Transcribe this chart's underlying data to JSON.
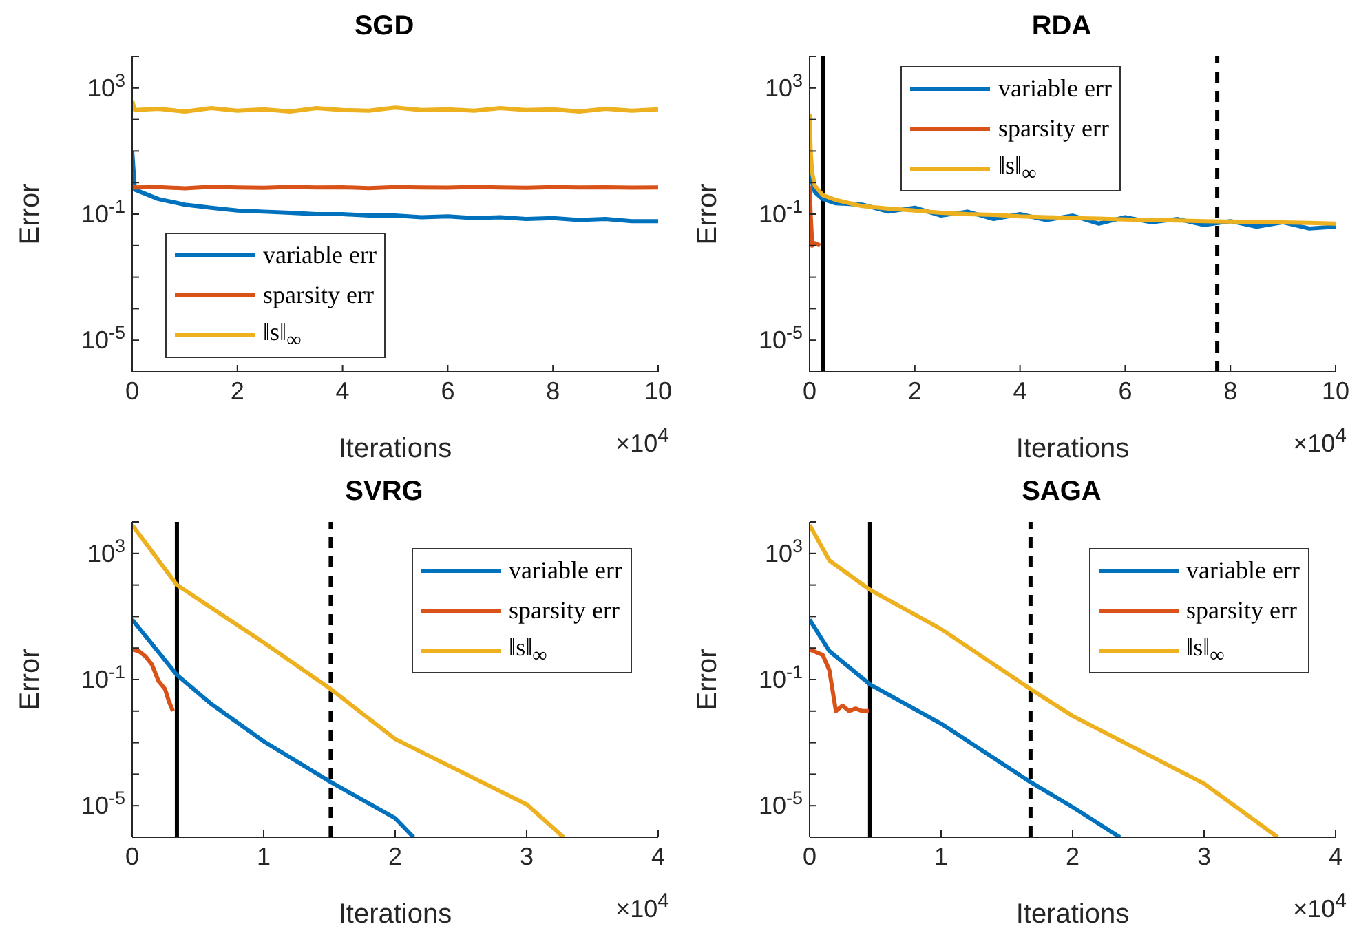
{
  "chart_data": [
    {
      "type": "line",
      "title": "SGD",
      "xlabel": "Iterations",
      "ylabel": "Error",
      "log": "y",
      "legend": "bottom left",
      "line_style": "solid",
      "xlim": [
        0,
        10
      ],
      "xticks": [
        0,
        2,
        4,
        6,
        8,
        10
      ],
      "ylim": [
        1e-06,
        10000
      ],
      "yticks": [
        {
          "value": 1e-06,
          "label": null
        },
        {
          "value": 1e-05,
          "label": "10$^{-5}$"
        },
        {
          "value": 0.0001,
          "label": null
        },
        {
          "value": 0.001,
          "label": null
        },
        {
          "value": 0.01,
          "label": null
        },
        {
          "value": 0.1,
          "label": "10$^{-1}$"
        },
        {
          "value": 1,
          "label": null
        },
        {
          "value": 10,
          "label": null
        },
        {
          "value": 100,
          "label": null
        },
        {
          "value": 1000,
          "label": "10$^{3}$"
        },
        {
          "value": 10000,
          "label": null
        }
      ],
      "annotations": [
        "×10$^{4}$"
      ],
      "series": [
        {
          "name": "variable err",
          "color": "#0072bd",
          "x": [
            0,
            0.05,
            0.5,
            1,
            1.5,
            2,
            2.5,
            3,
            3.5,
            4,
            4.5,
            5,
            5.5,
            6,
            6.5,
            7,
            7.5,
            8,
            8.5,
            9,
            9.5,
            10
          ],
          "values": [
            10,
            0.6,
            0.3,
            0.2,
            0.16,
            0.13,
            0.12,
            0.11,
            0.1,
            0.1,
            0.09,
            0.09,
            0.08,
            0.085,
            0.075,
            0.08,
            0.07,
            0.075,
            0.065,
            0.07,
            0.06,
            0.06
          ]
        },
        {
          "name": "sparsity err",
          "color": "#d95319",
          "x": [
            0,
            0.05,
            0.5,
            1,
            1.5,
            2,
            2.5,
            3,
            3.5,
            4,
            4.5,
            5,
            5.5,
            6,
            6.5,
            7,
            7.5,
            8,
            8.5,
            9,
            9.5,
            10
          ],
          "values": [
            0.8,
            0.7,
            0.72,
            0.66,
            0.74,
            0.7,
            0.68,
            0.73,
            0.7,
            0.71,
            0.67,
            0.72,
            0.7,
            0.69,
            0.73,
            0.7,
            0.68,
            0.72,
            0.7,
            0.71,
            0.69,
            0.7
          ]
        },
        {
          "name": "‖s‖$_{∞}$",
          "color": "#edb120",
          "x": [
            0,
            0.05,
            0.5,
            1,
            1.5,
            2,
            2.5,
            3,
            3.5,
            4,
            4.5,
            5,
            5.5,
            6,
            6.5,
            7,
            7.5,
            8,
            8.5,
            9,
            9.5,
            10
          ],
          "values": [
            400,
            200,
            220,
            180,
            230,
            190,
            210,
            180,
            230,
            200,
            190,
            240,
            200,
            210,
            190,
            230,
            200,
            210,
            180,
            220,
            190,
            210
          ]
        }
      ]
    },
    {
      "type": "line",
      "title": "RDA",
      "xlabel": "Iterations",
      "ylabel": "Error",
      "log": "y",
      "legend": "top",
      "line_style": "solid",
      "xlim": [
        0,
        10
      ],
      "xticks": [
        0,
        2,
        4,
        6,
        8,
        10
      ],
      "ylim": [
        1e-06,
        10000
      ],
      "yticks": [
        {
          "value": 1e-06,
          "label": null
        },
        {
          "value": 1e-05,
          "label": "10$^{-5}$"
        },
        {
          "value": 0.0001,
          "label": null
        },
        {
          "value": 0.001,
          "label": null
        },
        {
          "value": 0.01,
          "label": null
        },
        {
          "value": 0.1,
          "label": "10$^{-1}$"
        },
        {
          "value": 1,
          "label": null
        },
        {
          "value": 10,
          "label": null
        },
        {
          "value": 100,
          "label": null
        },
        {
          "value": 1000,
          "label": "10$^{3}$"
        },
        {
          "value": 10000,
          "label": null
        }
      ],
      "annotations": [
        "×10$^{4}$"
      ],
      "ref_lines": [
        {
          "axis": "x",
          "value": 0.25,
          "label": null,
          "color": "#000000",
          "line_style": "solid"
        },
        {
          "axis": "x",
          "value": 7.75,
          "label": null,
          "color": "#000000",
          "line_style": "dashed"
        }
      ],
      "series": [
        {
          "name": "variable err",
          "color": "#0072bd",
          "x": [
            0,
            0.02,
            0.05,
            0.1,
            0.25,
            0.5,
            1,
            1.5,
            2,
            2.5,
            3,
            3.5,
            4,
            4.5,
            5,
            5.5,
            6,
            6.5,
            7,
            7.5,
            8,
            8.5,
            9,
            9.5,
            10
          ],
          "values": [
            15,
            null,
            1,
            0.5,
            0.3,
            0.22,
            0.2,
            0.12,
            0.16,
            0.09,
            0.12,
            0.07,
            0.1,
            0.065,
            0.09,
            0.05,
            0.08,
            0.055,
            0.07,
            0.045,
            0.06,
            0.04,
            0.055,
            0.035,
            0.04
          ]
        },
        {
          "name": "sparsity err",
          "color": "#d95319",
          "x": [
            0,
            0.02,
            0.05,
            0.1,
            0.2
          ],
          "values": [
            0.8,
            0.1,
            0.01,
            0.012,
            0.01
          ]
        },
        {
          "name": "‖s‖$_{∞}$",
          "color": "#edb120",
          "x": [
            0,
            0.02,
            0.05,
            0.1,
            0.25,
            0.5,
            1,
            1.5,
            2,
            2.5,
            3,
            3.5,
            4,
            4.5,
            5,
            5.5,
            6,
            6.5,
            7,
            7.5,
            8,
            8.5,
            9,
            9.5,
            10
          ],
          "values": [
            150,
            10,
            2,
            0.8,
            0.4,
            0.28,
            0.18,
            0.15,
            0.13,
            0.11,
            0.1,
            0.095,
            0.085,
            0.08,
            0.075,
            0.072,
            0.068,
            0.065,
            0.063,
            0.06,
            0.058,
            0.056,
            0.055,
            0.053,
            0.05
          ]
        }
      ]
    },
    {
      "type": "line",
      "title": "SVRG",
      "xlabel": "Iterations",
      "ylabel": "Error",
      "log": "y",
      "legend": "top right",
      "line_style": "solid",
      "xlim": [
        0,
        4
      ],
      "xticks": [
        0,
        1,
        2,
        3,
        4
      ],
      "ylim": [
        1e-06,
        10000
      ],
      "yticks": [
        {
          "value": 1e-06,
          "label": null
        },
        {
          "value": 1e-05,
          "label": "10$^{-5}$"
        },
        {
          "value": 0.0001,
          "label": null
        },
        {
          "value": 0.001,
          "label": null
        },
        {
          "value": 0.01,
          "label": null
        },
        {
          "value": 0.1,
          "label": "10$^{-1}$"
        },
        {
          "value": 1,
          "label": null
        },
        {
          "value": 10,
          "label": null
        },
        {
          "value": 100,
          "label": null
        },
        {
          "value": 1000,
          "label": "10$^{3}$"
        },
        {
          "value": 10000,
          "label": null
        }
      ],
      "annotations": [
        "×10$^{4}$"
      ],
      "ref_lines": [
        {
          "axis": "x",
          "value": 0.34,
          "label": null,
          "color": "#000000",
          "line_style": "solid"
        },
        {
          "axis": "x",
          "value": 1.51,
          "label": null,
          "color": "#000000",
          "line_style": "dashed"
        }
      ],
      "series": [
        {
          "name": "variable err",
          "color": "#0072bd",
          "x": [
            0,
            0.34,
            0.6,
            1,
            1.51,
            2,
            2.14
          ],
          "values": [
            8,
            0.14,
            0.017,
            0.0011,
            5.6e-05,
            4e-06,
            1e-06
          ]
        },
        {
          "name": "sparsity err",
          "color": "#d95319",
          "x": [
            0,
            0.05,
            0.1,
            0.15,
            0.2,
            0.25,
            0.28,
            0.31
          ],
          "values": [
            0.9,
            0.8,
            0.55,
            0.3,
            0.09,
            0.05,
            0.02,
            0.01
          ]
        },
        {
          "name": "‖s‖$_{∞}$",
          "color": "#edb120",
          "x": [
            0,
            0.34,
            1,
            1.51,
            2,
            3,
            3.28
          ],
          "values": [
            8000,
            100,
            1.5,
            0.05,
            0.0013,
            1.1e-05,
            1e-06
          ]
        }
      ]
    },
    {
      "type": "line",
      "title": "SAGA",
      "xlabel": "Iterations",
      "ylabel": "Error",
      "log": "y",
      "legend": "top right",
      "line_style": "solid",
      "xlim": [
        0,
        4
      ],
      "xticks": [
        0,
        1,
        2,
        3,
        4
      ],
      "ylim": [
        1e-06,
        10000
      ],
      "yticks": [
        {
          "value": 1e-06,
          "label": null
        },
        {
          "value": 1e-05,
          "label": "10$^{-5}$"
        },
        {
          "value": 0.0001,
          "label": null
        },
        {
          "value": 0.001,
          "label": null
        },
        {
          "value": 0.01,
          "label": null
        },
        {
          "value": 0.1,
          "label": "10$^{-1}$"
        },
        {
          "value": 1,
          "label": null
        },
        {
          "value": 10,
          "label": null
        },
        {
          "value": 100,
          "label": null
        },
        {
          "value": 1000,
          "label": "10$^{3}$"
        },
        {
          "value": 10000,
          "label": null
        }
      ],
      "annotations": [
        "×10$^{4}$"
      ],
      "ref_lines": [
        {
          "axis": "x",
          "value": 0.46,
          "label": null,
          "color": "#000000",
          "line_style": "solid"
        },
        {
          "axis": "x",
          "value": 1.68,
          "label": null,
          "color": "#000000",
          "line_style": "dashed"
        }
      ],
      "series": [
        {
          "name": "variable err",
          "color": "#0072bd",
          "x": [
            0,
            0.15,
            0.46,
            1,
            1.68,
            2,
            2.36
          ],
          "values": [
            8,
            0.8,
            0.07,
            0.004,
            5.6e-05,
            9e-06,
            1e-06
          ]
        },
        {
          "name": "sparsity err",
          "color": "#d95319",
          "x": [
            0,
            0.1,
            0.15,
            0.2,
            0.25,
            0.3,
            0.35,
            0.4,
            0.45
          ],
          "values": [
            0.9,
            0.6,
            0.2,
            0.01,
            0.015,
            0.01,
            0.012,
            0.01,
            0.01
          ]
        },
        {
          "name": "‖s‖$_{∞}$",
          "color": "#edb120",
          "x": [
            0,
            0.15,
            0.46,
            1,
            1.68,
            2,
            3,
            3.56
          ],
          "values": [
            8000,
            600,
            70,
            4,
            0.05,
            0.007,
            5e-05,
            1e-06
          ]
        }
      ]
    }
  ]
}
